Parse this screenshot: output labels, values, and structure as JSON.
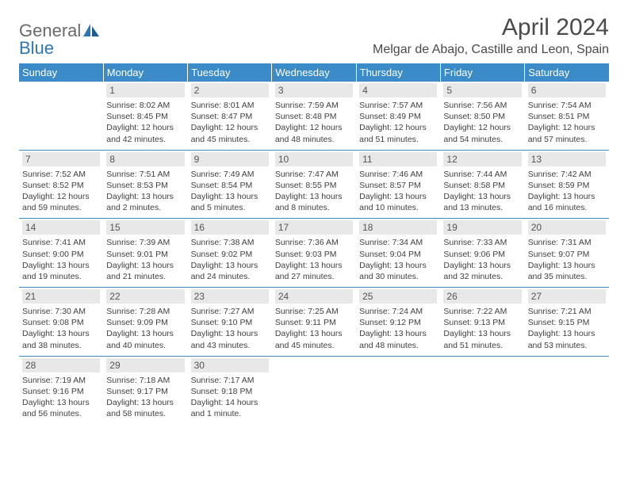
{
  "colors": {
    "header_bg": "#3b8bc9",
    "header_text": "#ffffff",
    "daynum_bg": "#e8e8e8",
    "daynum_text": "#555555",
    "body_text": "#404040",
    "border": "#3b8bc9",
    "logo_gray": "#6a6a6a",
    "logo_blue": "#2d77b8"
  },
  "logo": {
    "text1": "General",
    "text2": "Blue"
  },
  "title": "April 2024",
  "location": "Melgar de Abajo, Castille and Leon, Spain",
  "weekdays": [
    "Sunday",
    "Monday",
    "Tuesday",
    "Wednesday",
    "Thursday",
    "Friday",
    "Saturday"
  ],
  "days": [
    {
      "n": "1",
      "sunrise": "8:02 AM",
      "sunset": "8:45 PM",
      "daylight": "12 hours and 42 minutes."
    },
    {
      "n": "2",
      "sunrise": "8:01 AM",
      "sunset": "8:47 PM",
      "daylight": "12 hours and 45 minutes."
    },
    {
      "n": "3",
      "sunrise": "7:59 AM",
      "sunset": "8:48 PM",
      "daylight": "12 hours and 48 minutes."
    },
    {
      "n": "4",
      "sunrise": "7:57 AM",
      "sunset": "8:49 PM",
      "daylight": "12 hours and 51 minutes."
    },
    {
      "n": "5",
      "sunrise": "7:56 AM",
      "sunset": "8:50 PM",
      "daylight": "12 hours and 54 minutes."
    },
    {
      "n": "6",
      "sunrise": "7:54 AM",
      "sunset": "8:51 PM",
      "daylight": "12 hours and 57 minutes."
    },
    {
      "n": "7",
      "sunrise": "7:52 AM",
      "sunset": "8:52 PM",
      "daylight": "12 hours and 59 minutes."
    },
    {
      "n": "8",
      "sunrise": "7:51 AM",
      "sunset": "8:53 PM",
      "daylight": "13 hours and 2 minutes."
    },
    {
      "n": "9",
      "sunrise": "7:49 AM",
      "sunset": "8:54 PM",
      "daylight": "13 hours and 5 minutes."
    },
    {
      "n": "10",
      "sunrise": "7:47 AM",
      "sunset": "8:55 PM",
      "daylight": "13 hours and 8 minutes."
    },
    {
      "n": "11",
      "sunrise": "7:46 AM",
      "sunset": "8:57 PM",
      "daylight": "13 hours and 10 minutes."
    },
    {
      "n": "12",
      "sunrise": "7:44 AM",
      "sunset": "8:58 PM",
      "daylight": "13 hours and 13 minutes."
    },
    {
      "n": "13",
      "sunrise": "7:42 AM",
      "sunset": "8:59 PM",
      "daylight": "13 hours and 16 minutes."
    },
    {
      "n": "14",
      "sunrise": "7:41 AM",
      "sunset": "9:00 PM",
      "daylight": "13 hours and 19 minutes."
    },
    {
      "n": "15",
      "sunrise": "7:39 AM",
      "sunset": "9:01 PM",
      "daylight": "13 hours and 21 minutes."
    },
    {
      "n": "16",
      "sunrise": "7:38 AM",
      "sunset": "9:02 PM",
      "daylight": "13 hours and 24 minutes."
    },
    {
      "n": "17",
      "sunrise": "7:36 AM",
      "sunset": "9:03 PM",
      "daylight": "13 hours and 27 minutes."
    },
    {
      "n": "18",
      "sunrise": "7:34 AM",
      "sunset": "9:04 PM",
      "daylight": "13 hours and 30 minutes."
    },
    {
      "n": "19",
      "sunrise": "7:33 AM",
      "sunset": "9:06 PM",
      "daylight": "13 hours and 32 minutes."
    },
    {
      "n": "20",
      "sunrise": "7:31 AM",
      "sunset": "9:07 PM",
      "daylight": "13 hours and 35 minutes."
    },
    {
      "n": "21",
      "sunrise": "7:30 AM",
      "sunset": "9:08 PM",
      "daylight": "13 hours and 38 minutes."
    },
    {
      "n": "22",
      "sunrise": "7:28 AM",
      "sunset": "9:09 PM",
      "daylight": "13 hours and 40 minutes."
    },
    {
      "n": "23",
      "sunrise": "7:27 AM",
      "sunset": "9:10 PM",
      "daylight": "13 hours and 43 minutes."
    },
    {
      "n": "24",
      "sunrise": "7:25 AM",
      "sunset": "9:11 PM",
      "daylight": "13 hours and 45 minutes."
    },
    {
      "n": "25",
      "sunrise": "7:24 AM",
      "sunset": "9:12 PM",
      "daylight": "13 hours and 48 minutes."
    },
    {
      "n": "26",
      "sunrise": "7:22 AM",
      "sunset": "9:13 PM",
      "daylight": "13 hours and 51 minutes."
    },
    {
      "n": "27",
      "sunrise": "7:21 AM",
      "sunset": "9:15 PM",
      "daylight": "13 hours and 53 minutes."
    },
    {
      "n": "28",
      "sunrise": "7:19 AM",
      "sunset": "9:16 PM",
      "daylight": "13 hours and 56 minutes."
    },
    {
      "n": "29",
      "sunrise": "7:18 AM",
      "sunset": "9:17 PM",
      "daylight": "13 hours and 58 minutes."
    },
    {
      "n": "30",
      "sunrise": "7:17 AM",
      "sunset": "9:18 PM",
      "daylight": "14 hours and 1 minute."
    }
  ],
  "start_weekday_index": 1,
  "total_cells": 35
}
